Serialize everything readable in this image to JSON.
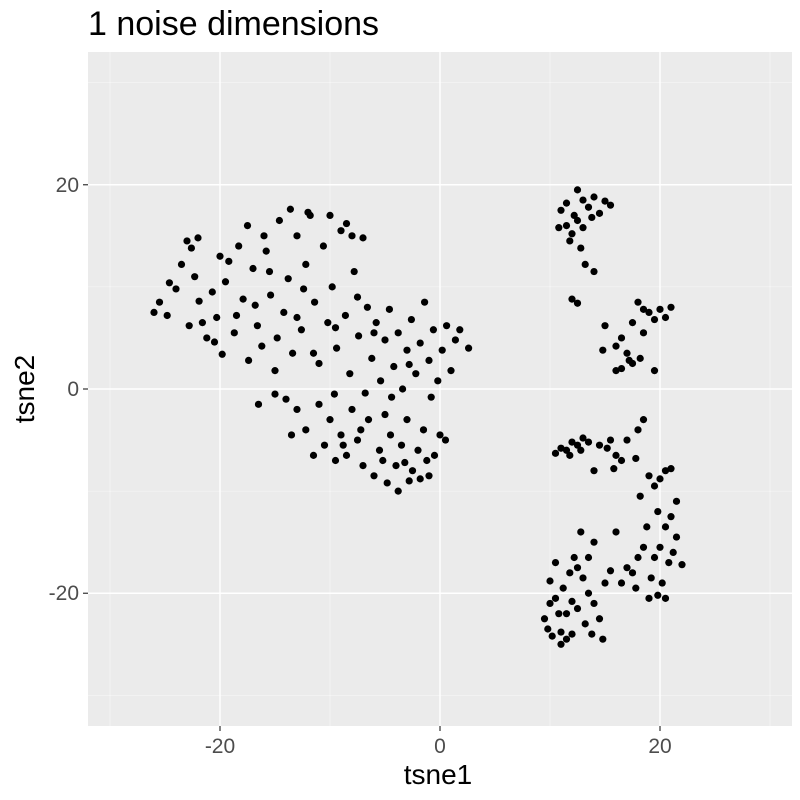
{
  "chart_data": {
    "type": "scatter",
    "title": "1 noise dimensions",
    "xlabel": "tsne1",
    "ylabel": "tsne2",
    "xlim": [
      -32,
      32
    ],
    "ylim": [
      -33,
      33
    ],
    "x_ticks": [
      -20,
      0,
      20
    ],
    "y_ticks": [
      -20,
      0,
      20
    ],
    "x_tick_labels": [
      "-20",
      "0",
      "20"
    ],
    "y_tick_labels": [
      "-20",
      "0",
      "20"
    ],
    "grid": true,
    "panel_color": "#ebebeb",
    "point_color": "#000000",
    "series": [
      {
        "points": [
          [
            -26.0,
            7.5
          ],
          [
            -25.5,
            8.5
          ],
          [
            -24.8,
            7.2
          ],
          [
            -24.0,
            9.8
          ],
          [
            -23.5,
            12.2
          ],
          [
            -23.0,
            14.5
          ],
          [
            -22.6,
            13.8
          ],
          [
            -22.3,
            11.0
          ],
          [
            -21.9,
            8.6
          ],
          [
            -21.6,
            6.5
          ],
          [
            -21.2,
            5.0
          ],
          [
            -20.7,
            9.5
          ],
          [
            -20.3,
            7.0
          ],
          [
            -19.8,
            3.4
          ],
          [
            -19.5,
            10.5
          ],
          [
            -19.2,
            12.5
          ],
          [
            -18.7,
            5.5
          ],
          [
            -18.3,
            14.0
          ],
          [
            -17.9,
            8.8
          ],
          [
            -17.4,
            2.8
          ],
          [
            -17.0,
            11.8
          ],
          [
            -16.6,
            6.2
          ],
          [
            -16.2,
            4.2
          ],
          [
            -15.8,
            13.5
          ],
          [
            -15.4,
            9.2
          ],
          [
            -15.0,
            1.8
          ],
          [
            -14.6,
            16.5
          ],
          [
            -14.2,
            7.5
          ],
          [
            -13.8,
            10.8
          ],
          [
            -13.4,
            3.5
          ],
          [
            -13.0,
            15.0
          ],
          [
            -12.6,
            5.8
          ],
          [
            -12.2,
            12.2
          ],
          [
            -11.8,
            17.0
          ],
          [
            -11.4,
            8.5
          ],
          [
            -11.0,
            2.5
          ],
          [
            -10.6,
            14.0
          ],
          [
            -10.2,
            6.5
          ],
          [
            -9.8,
            10.0
          ],
          [
            -9.4,
            4.0
          ],
          [
            -9.0,
            15.5
          ],
          [
            -8.6,
            7.2
          ],
          [
            -8.2,
            1.5
          ],
          [
            -7.8,
            11.5
          ],
          [
            -7.4,
            5.2
          ],
          [
            -7.0,
            14.8
          ],
          [
            -6.6,
            8.0
          ],
          [
            -6.2,
            3.0
          ],
          [
            -5.8,
            6.5
          ],
          [
            -5.4,
            0.8
          ],
          [
            -5.0,
            4.8
          ],
          [
            -4.6,
            7.8
          ],
          [
            -4.2,
            2.2
          ],
          [
            -3.8,
            5.5
          ],
          [
            -3.4,
            0.0
          ],
          [
            -3.0,
            3.8
          ],
          [
            -2.6,
            6.8
          ],
          [
            -2.2,
            1.5
          ],
          [
            -1.8,
            4.5
          ],
          [
            -1.4,
            8.5
          ],
          [
            -1.0,
            2.8
          ],
          [
            -0.6,
            5.8
          ],
          [
            -0.2,
            0.8
          ],
          [
            0.2,
            3.8
          ],
          [
            0.6,
            6.2
          ],
          [
            1.0,
            1.8
          ],
          [
            1.4,
            4.8
          ],
          [
            1.8,
            5.8
          ],
          [
            2.6,
            4.0
          ],
          [
            -22.0,
            14.8
          ],
          [
            -20.0,
            13.0
          ],
          [
            -17.5,
            16.0
          ],
          [
            -16.0,
            15.0
          ],
          [
            -13.6,
            17.6
          ],
          [
            -12.0,
            17.3
          ],
          [
            -10.0,
            17.0
          ],
          [
            -8.5,
            16.2
          ],
          [
            -8.0,
            15.0
          ],
          [
            -15.5,
            11.5
          ],
          [
            -18.5,
            7.2
          ],
          [
            -20.5,
            4.6
          ],
          [
            -22.8,
            6.2
          ],
          [
            -24.6,
            10.4
          ],
          [
            -13.0,
            7.0
          ],
          [
            -11.5,
            3.5
          ],
          [
            -9.5,
            6.0
          ],
          [
            -7.5,
            9.0
          ],
          [
            -6.0,
            5.5
          ],
          [
            -12.4,
            9.8
          ],
          [
            -14.8,
            5.0
          ],
          [
            -16.8,
            8.2
          ],
          [
            -4.4,
            -0.8
          ],
          [
            -2.8,
            2.4
          ],
          [
            -0.8,
            -0.8
          ],
          [
            -6.8,
            -0.4
          ],
          [
            -9.6,
            -0.5
          ],
          [
            -16.5,
            -1.5
          ],
          [
            -13.5,
            -4.5
          ],
          [
            -13.0,
            -2.0
          ],
          [
            -11.0,
            -1.5
          ],
          [
            -10.0,
            -3.0
          ],
          [
            -9.0,
            -4.5
          ],
          [
            -8.0,
            -2.0
          ],
          [
            -7.5,
            -5.0
          ],
          [
            -6.5,
            -3.0
          ],
          [
            -5.5,
            -6.0
          ],
          [
            -5.0,
            -2.5
          ],
          [
            -4.5,
            -4.5
          ],
          [
            -4.0,
            -7.5
          ],
          [
            -3.5,
            -5.5
          ],
          [
            -3.0,
            -3.0
          ],
          [
            -2.5,
            -8.0
          ],
          [
            -2.0,
            -6.0
          ],
          [
            -1.5,
            -4.0
          ],
          [
            -1.0,
            -8.5
          ],
          [
            -0.5,
            -6.5
          ],
          [
            0.0,
            -4.5
          ],
          [
            0.5,
            -5.0
          ],
          [
            -11.5,
            -6.5
          ],
          [
            -10.5,
            -5.5
          ],
          [
            -9.5,
            -7.0
          ],
          [
            -8.5,
            -6.5
          ],
          [
            -7.0,
            -7.5
          ],
          [
            -6.0,
            -8.5
          ],
          [
            -4.8,
            -9.2
          ],
          [
            -3.8,
            -10.0
          ],
          [
            -2.8,
            -9.0
          ],
          [
            -1.8,
            -8.8
          ],
          [
            -12.2,
            -4.0
          ],
          [
            -14.0,
            -1.0
          ],
          [
            -15.0,
            -0.5
          ],
          [
            -8.8,
            -5.5
          ],
          [
            -7.2,
            -4.0
          ],
          [
            -5.2,
            -7.0
          ],
          [
            -3.2,
            -7.2
          ],
          [
            -1.2,
            -7.0
          ],
          [
            12.5,
            19.5
          ],
          [
            13.0,
            18.5
          ],
          [
            13.5,
            17.8
          ],
          [
            14.0,
            18.8
          ],
          [
            14.5,
            17.2
          ],
          [
            15.0,
            18.4
          ],
          [
            15.5,
            18.0
          ],
          [
            11.0,
            17.5
          ],
          [
            11.5,
            16.0
          ],
          [
            12.0,
            15.2
          ],
          [
            12.5,
            16.5
          ],
          [
            13.0,
            15.8
          ],
          [
            11.8,
            14.5
          ],
          [
            12.8,
            13.8
          ],
          [
            10.8,
            15.8
          ],
          [
            13.2,
            12.2
          ],
          [
            14.0,
            11.5
          ],
          [
            12.2,
            17.0
          ],
          [
            13.8,
            16.8
          ],
          [
            11.5,
            18.2
          ],
          [
            12.0,
            8.8
          ],
          [
            12.5,
            8.4
          ],
          [
            18.0,
            8.5
          ],
          [
            18.5,
            7.8
          ],
          [
            19.0,
            7.5
          ],
          [
            19.5,
            6.8
          ],
          [
            20.0,
            7.8
          ],
          [
            20.5,
            7.0
          ],
          [
            21.0,
            8.0
          ],
          [
            17.5,
            6.5
          ],
          [
            16.5,
            5.0
          ],
          [
            16.0,
            4.2
          ],
          [
            17.0,
            3.5
          ],
          [
            17.5,
            2.5
          ],
          [
            16.5,
            2.0
          ],
          [
            16.0,
            1.8
          ],
          [
            17.2,
            2.8
          ],
          [
            18.5,
            5.5
          ],
          [
            15.0,
            6.2
          ],
          [
            14.8,
            3.8
          ],
          [
            19.5,
            1.8
          ],
          [
            18.2,
            3.0
          ],
          [
            10.5,
            -6.3
          ],
          [
            11.0,
            -5.8
          ],
          [
            11.5,
            -6.0
          ],
          [
            12.0,
            -5.2
          ],
          [
            12.5,
            -5.5
          ],
          [
            13.0,
            -4.8
          ],
          [
            11.8,
            -6.5
          ],
          [
            12.8,
            -6.0
          ],
          [
            13.5,
            -5.2
          ],
          [
            14.5,
            -5.5
          ],
          [
            15.5,
            -5.0
          ],
          [
            16.0,
            -6.5
          ],
          [
            16.5,
            -7.0
          ],
          [
            15.8,
            -7.8
          ],
          [
            17.0,
            -5.0
          ],
          [
            18.0,
            -4.0
          ],
          [
            18.5,
            -3.0
          ],
          [
            14.0,
            -8.0
          ],
          [
            15.2,
            -5.8
          ],
          [
            17.8,
            -6.8
          ],
          [
            19.0,
            -8.5
          ],
          [
            19.5,
            -9.5
          ],
          [
            20.0,
            -8.8
          ],
          [
            20.5,
            -8.0
          ],
          [
            21.0,
            -7.8
          ],
          [
            19.8,
            -12.0
          ],
          [
            20.5,
            -13.5
          ],
          [
            21.0,
            -12.5
          ],
          [
            21.5,
            -14.5
          ],
          [
            20.0,
            -15.5
          ],
          [
            19.5,
            -16.5
          ],
          [
            20.8,
            -17.0
          ],
          [
            21.2,
            -16.0
          ],
          [
            22.0,
            -17.2
          ],
          [
            18.5,
            -15.5
          ],
          [
            18.0,
            -16.5
          ],
          [
            17.5,
            -18.0
          ],
          [
            17.0,
            -17.5
          ],
          [
            16.5,
            -19.0
          ],
          [
            17.8,
            -19.5
          ],
          [
            19.0,
            -20.5
          ],
          [
            19.8,
            -20.2
          ],
          [
            20.5,
            -20.5
          ],
          [
            16.0,
            -14.0
          ],
          [
            15.5,
            -17.8
          ],
          [
            18.8,
            -13.5
          ],
          [
            19.2,
            -18.5
          ],
          [
            20.2,
            -19.0
          ],
          [
            21.5,
            -11.0
          ],
          [
            18.2,
            -10.5
          ],
          [
            9.5,
            -22.5
          ],
          [
            9.8,
            -23.5
          ],
          [
            10.0,
            -21.0
          ],
          [
            10.5,
            -20.5
          ],
          [
            10.8,
            -22.0
          ],
          [
            11.0,
            -23.8
          ],
          [
            11.5,
            -24.5
          ],
          [
            11.2,
            -19.5
          ],
          [
            11.8,
            -18.0
          ],
          [
            12.2,
            -16.5
          ],
          [
            12.5,
            -17.5
          ],
          [
            13.0,
            -18.5
          ],
          [
            13.5,
            -20.0
          ],
          [
            14.0,
            -21.0
          ],
          [
            14.5,
            -22.5
          ],
          [
            13.8,
            -24.0
          ],
          [
            13.2,
            -23.0
          ],
          [
            12.5,
            -21.5
          ],
          [
            12.0,
            -20.8
          ],
          [
            11.5,
            -22.0
          ],
          [
            10.2,
            -24.2
          ],
          [
            11.0,
            -25.0
          ],
          [
            14.8,
            -24.5
          ],
          [
            15.0,
            -19.0
          ],
          [
            14.0,
            -15.0
          ],
          [
            12.8,
            -14.0
          ],
          [
            10.5,
            -17.0
          ],
          [
            12.0,
            -24.0
          ],
          [
            13.5,
            -16.5
          ],
          [
            10.0,
            -18.8
          ]
        ]
      }
    ]
  }
}
